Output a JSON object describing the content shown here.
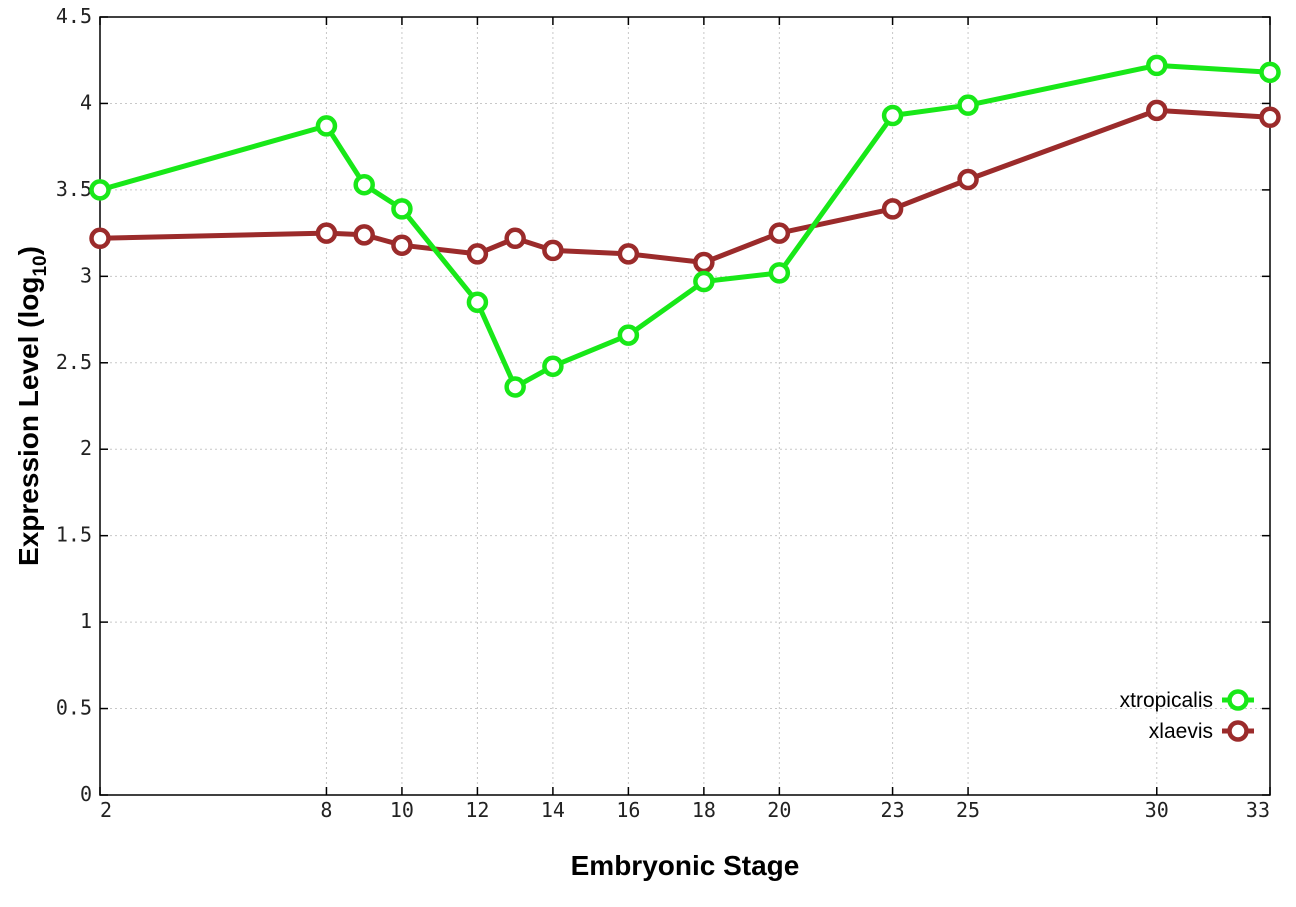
{
  "chart_data": {
    "type": "line",
    "xlabel": "Embryonic Stage",
    "ylabel": "Expression Level (log",
    "ylabel_sub": "10",
    "ylabel_close": ")",
    "x_categories": [
      "2",
      "8",
      "9",
      "10",
      "12",
      "13",
      "14",
      "16",
      "18",
      "20",
      "23",
      "25",
      "30",
      "33"
    ],
    "x_ticks": [
      "2",
      "8",
      "10",
      "12",
      "14",
      "16",
      "18",
      "20",
      "23",
      "25",
      "30",
      "33"
    ],
    "y_ticks": [
      "0",
      "0.5",
      "1",
      "1.5",
      "2",
      "2.5",
      "3",
      "3.5",
      "4",
      "4.5"
    ],
    "ylim": [
      0,
      4.5
    ],
    "grid": true,
    "legend_position": "bottom-right",
    "series": [
      {
        "name": "xtropicalis",
        "color": "#18e818",
        "values": [
          3.5,
          3.87,
          3.53,
          3.39,
          2.85,
          2.36,
          2.48,
          2.66,
          2.97,
          3.02,
          3.93,
          3.99,
          4.22,
          4.18
        ]
      },
      {
        "name": "xlaevis",
        "color": "#9b2b2b",
        "values": [
          3.22,
          3.25,
          3.24,
          3.18,
          3.13,
          3.22,
          3.15,
          3.13,
          3.08,
          3.25,
          3.39,
          3.56,
          3.96,
          3.92
        ]
      }
    ]
  }
}
